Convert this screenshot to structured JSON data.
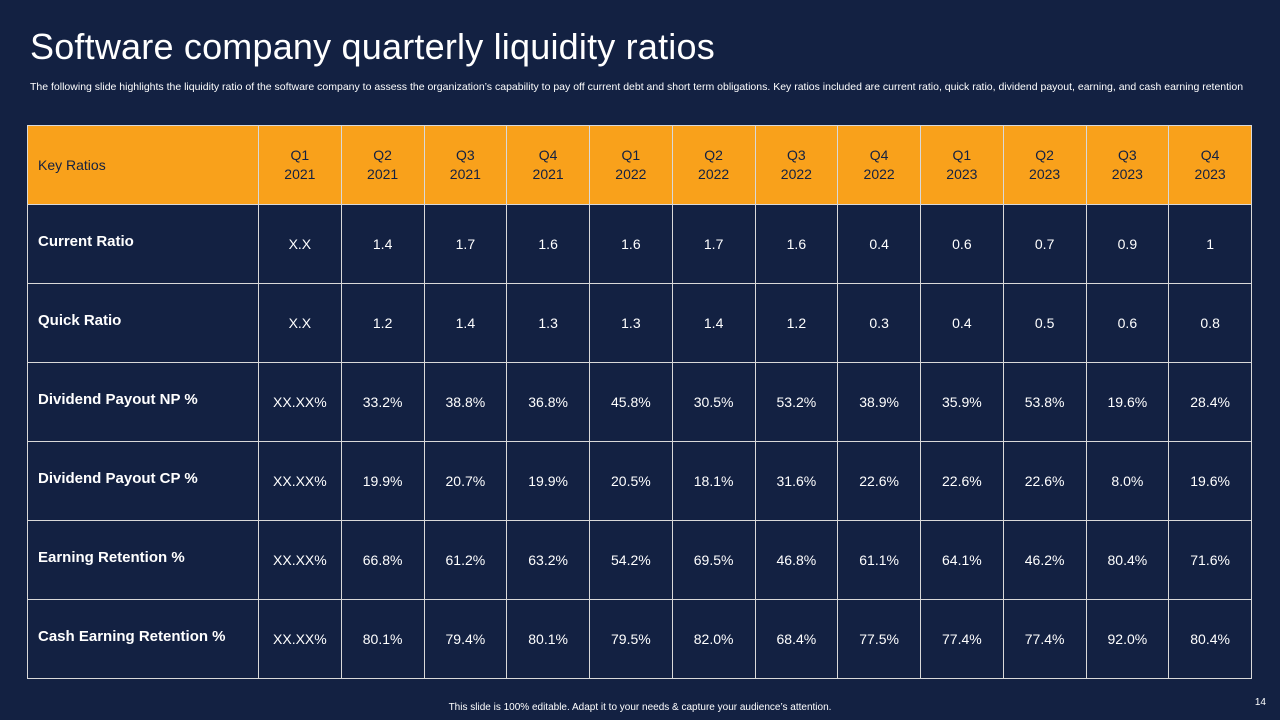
{
  "title": "Software company quarterly liquidity ratios",
  "subtitle": "The following slide highlights the liquidity ratio of the software company to assess the organization’s capability to pay off current debt and short term obligations. Key ratios included are current ratio, quick ratio, dividend payout, earning, and cash earning retention",
  "table": {
    "corner_label": "Key Ratios",
    "columns": [
      {
        "q": "Q1",
        "y": "2021"
      },
      {
        "q": "Q2",
        "y": "2021"
      },
      {
        "q": "Q3",
        "y": "2021"
      },
      {
        "q": "Q4",
        "y": "2021"
      },
      {
        "q": "Q1",
        "y": "2022"
      },
      {
        "q": "Q2",
        "y": "2022"
      },
      {
        "q": "Q3",
        "y": "2022"
      },
      {
        "q": "Q4",
        "y": "2022"
      },
      {
        "q": "Q1",
        "y": "2023"
      },
      {
        "q": "Q2",
        "y": "2023"
      },
      {
        "q": "Q3",
        "y": "2023"
      },
      {
        "q": "Q4",
        "y": "2023"
      }
    ],
    "rows": [
      {
        "label": "Current Ratio",
        "values": [
          "X.X",
          "1.4",
          "1.7",
          "1.6",
          "1.6",
          "1.7",
          "1.6",
          "0.4",
          "0.6",
          "0.7",
          "0.9",
          "1"
        ]
      },
      {
        "label": "Quick Ratio",
        "values": [
          "X.X",
          "1.2",
          "1.4",
          "1.3",
          "1.3",
          "1.4",
          "1.2",
          "0.3",
          "0.4",
          "0.5",
          "0.6",
          "0.8"
        ]
      },
      {
        "label": "Dividend Payout NP %",
        "values": [
          "XX.XX%",
          "33.2%",
          "38.8%",
          "36.8%",
          "45.8%",
          "30.5%",
          "53.2%",
          "38.9%",
          "35.9%",
          "53.8%",
          "19.6%",
          "28.4%"
        ]
      },
      {
        "label": "Dividend Payout CP %",
        "values": [
          "XX.XX%",
          "19.9%",
          "20.7%",
          "19.9%",
          "20.5%",
          "18.1%",
          "31.6%",
          "22.6%",
          "22.6%",
          "22.6%",
          "8.0%",
          "19.6%"
        ]
      },
      {
        "label": "Earning Retention %",
        "values": [
          "XX.XX%",
          "66.8%",
          "61.2%",
          "63.2%",
          "54.2%",
          "69.5%",
          "46.8%",
          "61.1%",
          "64.1%",
          "46.2%",
          "80.4%",
          "71.6%"
        ]
      },
      {
        "label": "Cash Earning Retention %",
        "values": [
          "XX.XX%",
          "80.1%",
          "79.4%",
          "80.1%",
          "79.5%",
          "82.0%",
          "68.4%",
          "77.5%",
          "77.4%",
          "77.4%",
          "92.0%",
          "80.4%"
        ]
      }
    ]
  },
  "footer": "This slide is 100% editable.  Adapt it to your needs & capture your audience’s attention.",
  "page_number": "14",
  "colors": {
    "background": "#132142",
    "header_fill": "#f9a11b",
    "border": "#d9d9d9"
  }
}
